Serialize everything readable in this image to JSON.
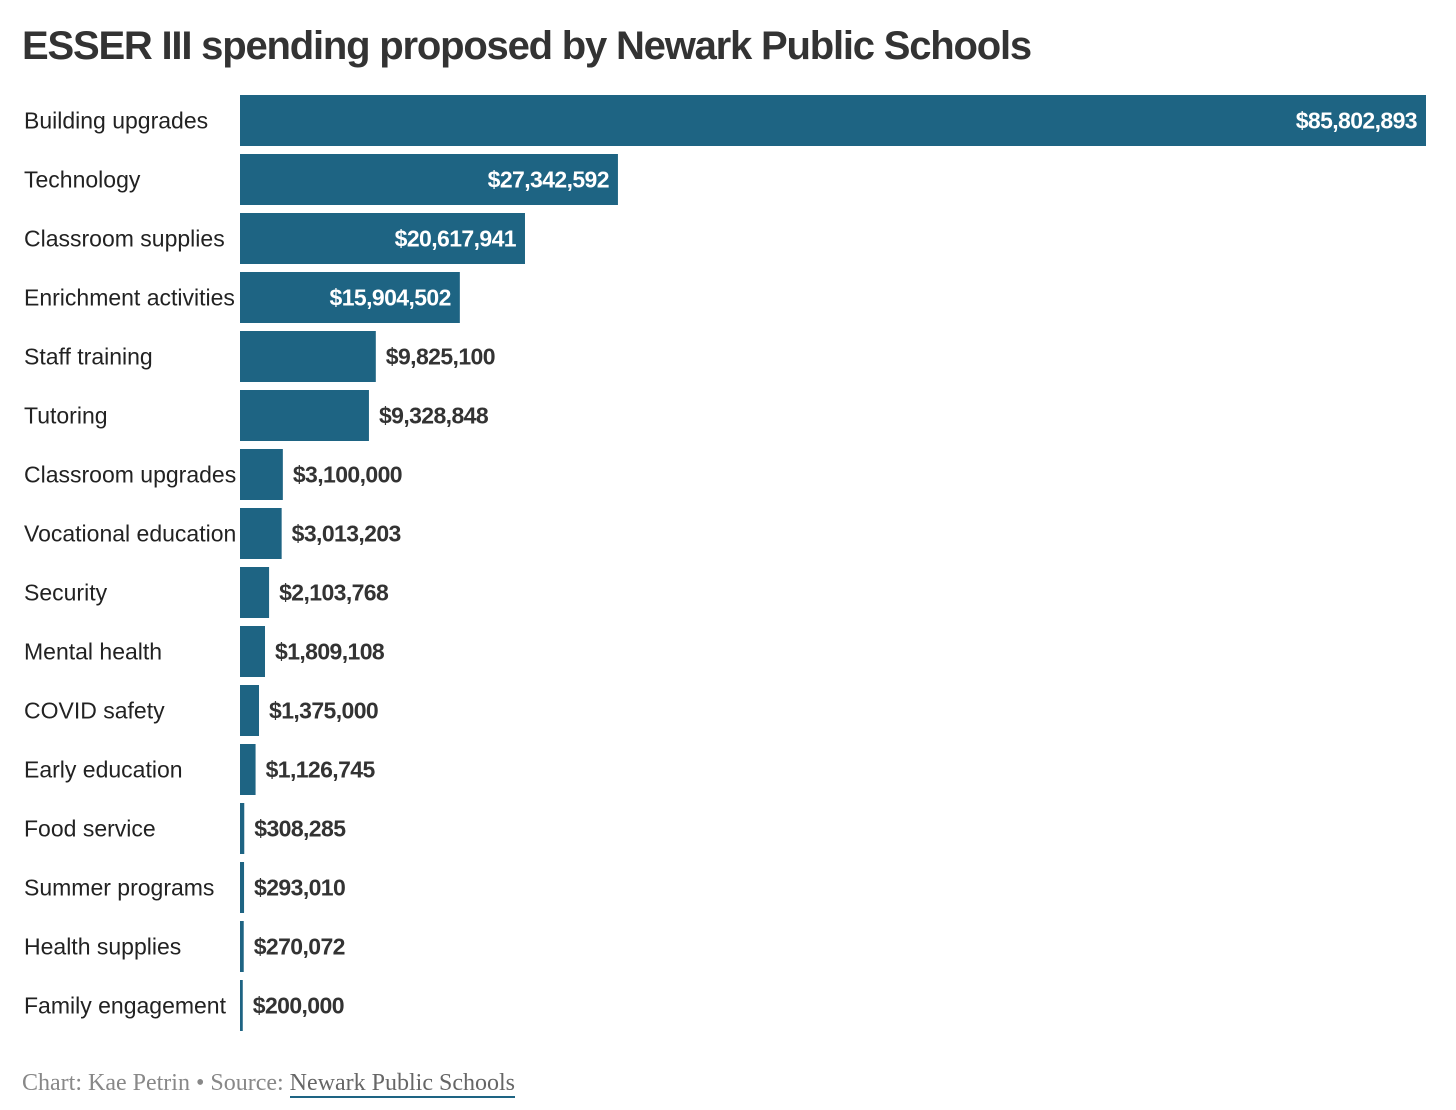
{
  "chart_data": {
    "type": "bar",
    "orientation": "horizontal",
    "title": "ESSER III spending proposed by Newark Public Schools",
    "categories": [
      "Building upgrades",
      "Technology",
      "Classroom supplies",
      "Enrichment activities",
      "Staff training",
      "Tutoring",
      "Classroom upgrades",
      "Vocational education",
      "Security",
      "Mental health",
      "COVID safety",
      "Early education",
      "Food service",
      "Summer programs",
      "Health supplies",
      "Family engagement"
    ],
    "values": [
      85802893,
      27342592,
      20617941,
      15904502,
      9825100,
      9328848,
      3100000,
      3013203,
      2103768,
      1809108,
      1375000,
      1126745,
      308285,
      293010,
      270072,
      200000
    ],
    "value_labels": [
      "$85,802,893",
      "$27,342,592",
      "$20,617,941",
      "$15,904,502",
      "$9,825,100",
      "$9,328,848",
      "$3,100,000",
      "$3,013,203",
      "$2,103,768",
      "$1,809,108",
      "$1,375,000",
      "$1,126,745",
      "$308,285",
      "$293,010",
      "$270,072",
      "$200,000"
    ],
    "xlim": [
      0,
      85802893
    ],
    "xlabel": "",
    "ylabel": "",
    "grid": false,
    "legend": "none",
    "bar_color": "#1e6483"
  },
  "footer": {
    "chart_credit": "Chart: Kae Petrin",
    "separator": "•",
    "source_prefix": "Source:",
    "source_name": "Newark Public Schools"
  }
}
